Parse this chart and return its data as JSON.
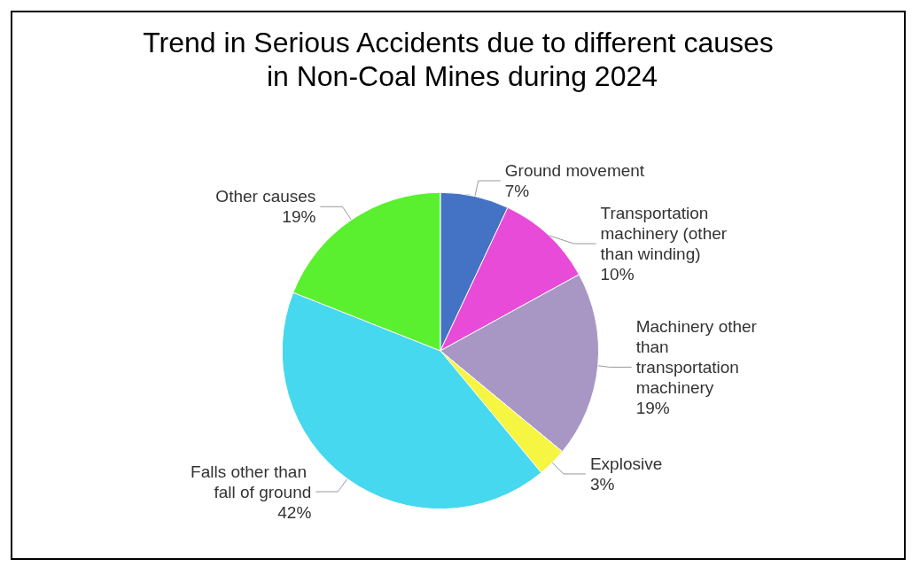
{
  "chart_data": {
    "type": "pie",
    "title": "Trend in Serious Accidents due to different causes in Non-Coal Mines during 2024",
    "categories": [
      "Ground movement",
      "Transportation machinery (other than winding)",
      "Machinery other than transportation machinery",
      "Explosive",
      "Falls other than fall of ground",
      "Other causes"
    ],
    "values": [
      7,
      10,
      19,
      3,
      42,
      19
    ],
    "value_labels": [
      "7%",
      "10%",
      "19%",
      "3%",
      "42%",
      "19%"
    ],
    "colors": [
      "#4472c4",
      "#e84bd8",
      "#a897c4",
      "#f5f542",
      "#45d8ee",
      "#5af030"
    ],
    "legend": false
  }
}
